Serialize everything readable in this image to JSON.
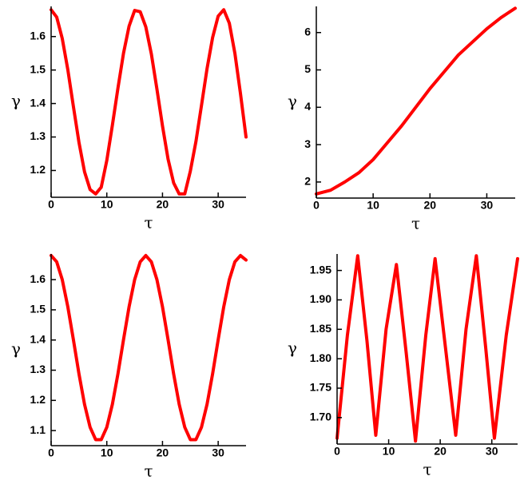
{
  "chart_data": [
    {
      "type": "line",
      "xlabel": "τ",
      "ylabel": "γ",
      "color": "#ff0000",
      "x": [
        0,
        1,
        2,
        3,
        4,
        5,
        6,
        7,
        8,
        9,
        10,
        11,
        12,
        13,
        14,
        15,
        16,
        17,
        18,
        19,
        20,
        21,
        22,
        23,
        24,
        25,
        26,
        27,
        28,
        29,
        30,
        31,
        32,
        33,
        34,
        35
      ],
      "values": [
        1.68,
        1.658,
        1.594,
        1.501,
        1.391,
        1.284,
        1.196,
        1.143,
        1.13,
        1.15,
        1.23,
        1.335,
        1.446,
        1.55,
        1.631,
        1.678,
        1.674,
        1.629,
        1.548,
        1.443,
        1.333,
        1.234,
        1.163,
        1.13,
        1.13,
        1.198,
        1.286,
        1.394,
        1.504,
        1.597,
        1.661,
        1.68,
        1.64,
        1.55,
        1.43,
        1.3
      ],
      "xlim": [
        0,
        35
      ],
      "xticks": [
        0,
        10,
        20,
        30
      ],
      "ylim": [
        1.12,
        1.69
      ],
      "yticks": [
        1.2,
        1.3,
        1.4,
        1.5,
        1.6
      ]
    },
    {
      "type": "line",
      "xlabel": "τ",
      "ylabel": "γ",
      "color": "#ff0000",
      "x": [
        0,
        2.5,
        5,
        7.5,
        10,
        12.5,
        15,
        17.5,
        20,
        22.5,
        25,
        27.5,
        30,
        32.5,
        35
      ],
      "values": [
        1.68,
        1.78,
        2.0,
        2.25,
        2.6,
        3.05,
        3.5,
        4.0,
        4.5,
        4.95,
        5.4,
        5.75,
        6.1,
        6.4,
        6.65
      ],
      "xlim": [
        0,
        35
      ],
      "xticks": [
        0,
        10,
        20,
        30
      ],
      "ylim": [
        1.57,
        6.7
      ],
      "yticks": [
        2,
        3,
        4,
        5,
        6
      ]
    },
    {
      "type": "line",
      "xlabel": "τ",
      "ylabel": "γ",
      "color": "#ff0000",
      "x": [
        0,
        1,
        2,
        3,
        4,
        5,
        6,
        7,
        8,
        9,
        10,
        11,
        12,
        13,
        14,
        15,
        16,
        17,
        18,
        19,
        20,
        21,
        22,
        23,
        24,
        25,
        26,
        27,
        28,
        29,
        30,
        31,
        32,
        33,
        34,
        35
      ],
      "values": [
        1.68,
        1.659,
        1.6,
        1.51,
        1.401,
        1.288,
        1.187,
        1.111,
        1.07,
        1.07,
        1.111,
        1.187,
        1.288,
        1.401,
        1.51,
        1.6,
        1.659,
        1.68,
        1.659,
        1.6,
        1.51,
        1.401,
        1.288,
        1.187,
        1.111,
        1.07,
        1.07,
        1.111,
        1.187,
        1.288,
        1.401,
        1.51,
        1.6,
        1.659,
        1.68,
        1.665
      ],
      "xlim": [
        0,
        35
      ],
      "xticks": [
        0,
        10,
        20,
        30
      ],
      "ylim": [
        1.05,
        1.685
      ],
      "yticks": [
        1.1,
        1.2,
        1.3,
        1.4,
        1.5,
        1.6
      ]
    },
    {
      "type": "line",
      "xlabel": "τ",
      "ylabel": "γ",
      "color": "#ff0000",
      "x": [
        0,
        2,
        4,
        5.8,
        7.5,
        9.5,
        11.5,
        13.4,
        15.2,
        17.2,
        19,
        21,
        23,
        25,
        27,
        28.8,
        30.5,
        32.8,
        35
      ],
      "values": [
        1.665,
        1.84,
        1.975,
        1.83,
        1.67,
        1.85,
        1.96,
        1.81,
        1.66,
        1.84,
        1.97,
        1.82,
        1.67,
        1.85,
        1.975,
        1.82,
        1.665,
        1.84,
        1.97
      ],
      "xlim": [
        0,
        35
      ],
      "xticks": [
        0,
        10,
        20,
        30
      ],
      "ylim": [
        1.655,
        1.978
      ],
      "yticks": [
        {
          "value": 1.7,
          "label": "1.70"
        },
        1.75,
        {
          "value": 1.8,
          "label": "1.80"
        },
        1.85,
        {
          "value": 1.9,
          "label": "1.90"
        },
        1.95
      ]
    }
  ]
}
